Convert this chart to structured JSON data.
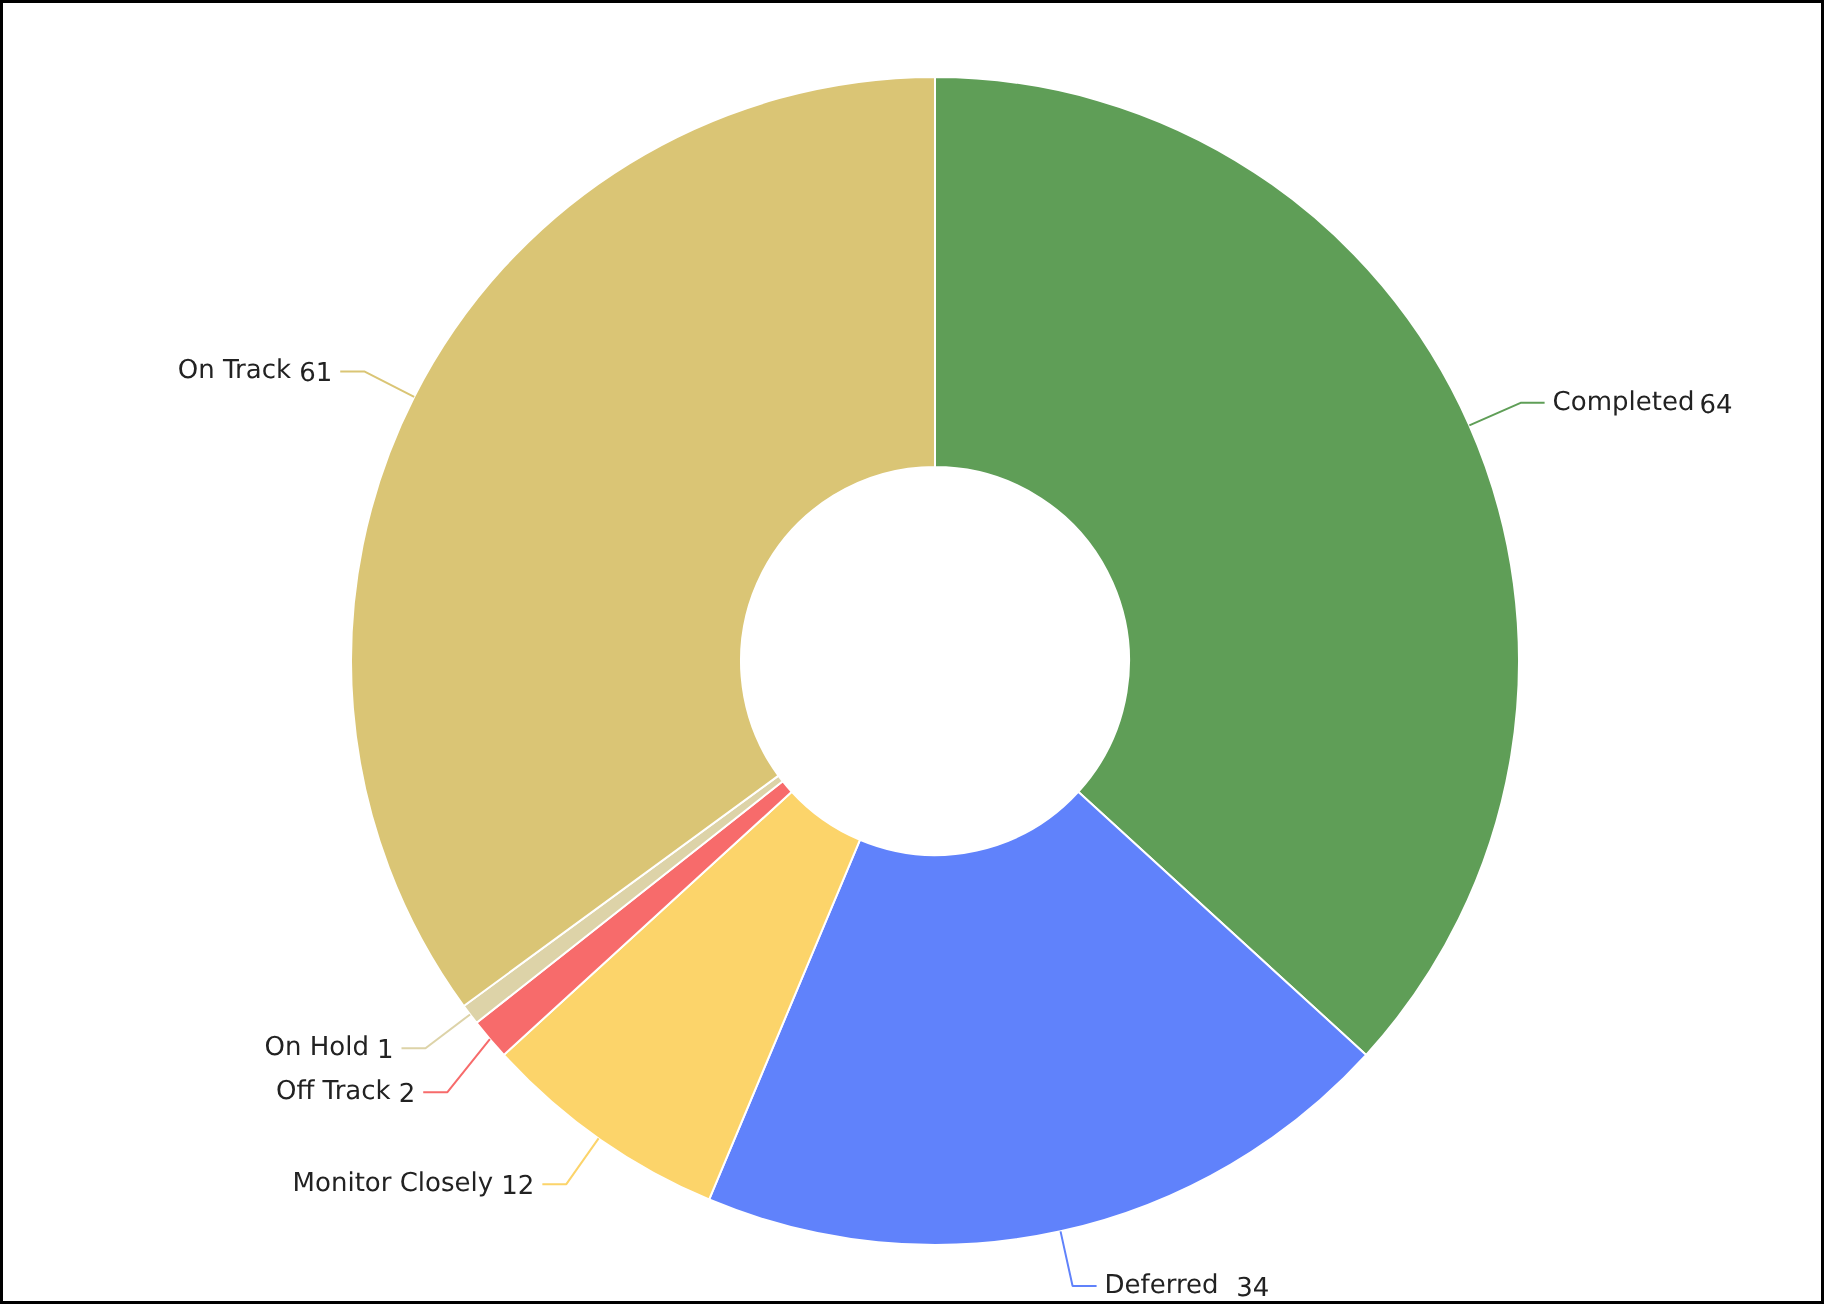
{
  "chart_data": {
    "type": "donut",
    "categories": [
      "Completed",
      "Deferred",
      "Monitor Closely",
      "Off Track",
      "On Hold",
      "On Track"
    ],
    "values": [
      64,
      34,
      12,
      2,
      1,
      61
    ],
    "colors": [
      "#5f9e57",
      "#6082fb",
      "#fcd46a",
      "#f76b6b",
      "#ddd3a8",
      "#dac575"
    ],
    "data_labels": true
  }
}
